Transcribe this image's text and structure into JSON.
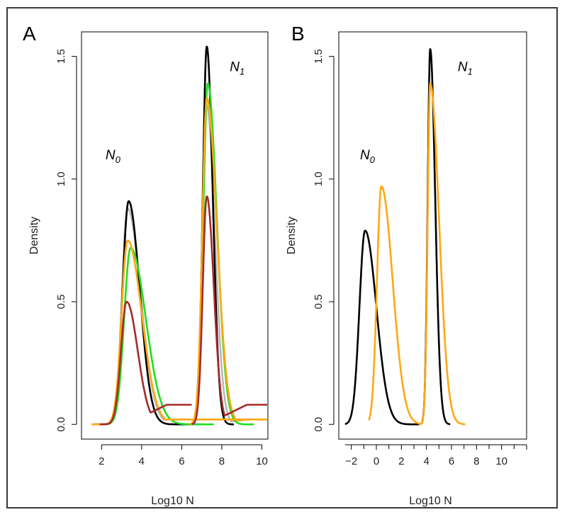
{
  "chart_data": [
    {
      "type": "line",
      "panel": "A",
      "xlabel": "Log10 N",
      "ylabel": "Density",
      "xlim": [
        1.0,
        10.3
      ],
      "ylim": [
        -0.06,
        1.6
      ],
      "xticks": [
        2,
        4,
        6,
        8,
        10
      ],
      "yticks": [
        0.0,
        0.5,
        1.0,
        1.5
      ],
      "ytick_labels": [
        "0.0",
        "0.5",
        "1.0",
        "1.5"
      ],
      "annotations": [
        {
          "main": "N",
          "sub": "0",
          "x": 2.2,
          "y": 1.08
        },
        {
          "main": "N",
          "sub": "1",
          "x": 8.4,
          "y": 1.44
        }
      ],
      "series": [
        {
          "name": "grey",
          "color": "#b8b8b8",
          "peaks": [
            {
              "center": 3.3,
              "height": 0.88,
              "left_width": 0.28,
              "right_width": 0.65,
              "from": 1.6,
              "to": 7.4
            },
            {
              "center": 7.25,
              "height": 1.3,
              "left_width": 0.22,
              "right_width": 0.4,
              "from": 6.4,
              "to": 9.5
            }
          ],
          "baseline": 0.02
        },
        {
          "name": "black",
          "color": "#000000",
          "peaks": [
            {
              "center": 3.35,
              "height": 0.91,
              "left_width": 0.3,
              "right_width": 0.55,
              "from": 1.6,
              "to": 7.0
            },
            {
              "center": 7.25,
              "height": 1.54,
              "left_width": 0.2,
              "right_width": 0.3,
              "from": 6.6,
              "to": 8.6
            }
          ],
          "baseline": 0.0
        },
        {
          "name": "green",
          "color": "#22dd22",
          "peaks": [
            {
              "center": 3.45,
              "height": 0.72,
              "left_width": 0.32,
              "right_width": 0.75,
              "from": 1.7,
              "to": 7.6
            },
            {
              "center": 7.3,
              "height": 1.39,
              "left_width": 0.22,
              "right_width": 0.45,
              "from": 6.5,
              "to": 9.6
            }
          ],
          "baseline": 0.0
        },
        {
          "name": "orange",
          "color": "#ffa812",
          "peaks": [
            {
              "center": 3.3,
              "height": 0.75,
              "left_width": 0.3,
              "right_width": 0.7,
              "from": 1.5,
              "to": 10.3
            },
            {
              "center": 7.25,
              "height": 1.33,
              "left_width": 0.22,
              "right_width": 0.5,
              "from": 6.4,
              "to": 10.3
            }
          ],
          "baseline": 0.02
        },
        {
          "name": "darkred",
          "color": "#a52a2a",
          "peaks": [
            {
              "center": 3.25,
              "height": 0.5,
              "left_width": 0.28,
              "right_width": 0.55,
              "from": 1.9,
              "to": 6.5
            },
            {
              "center": 7.25,
              "height": 0.93,
              "left_width": 0.2,
              "right_width": 0.35,
              "from": 6.5,
              "to": 10.3
            }
          ],
          "baseline": 0.08
        }
      ]
    },
    {
      "type": "line",
      "panel": "B",
      "xlabel": "Log10 N",
      "ylabel": "Density",
      "xlim": [
        -3.0,
        12.0
      ],
      "ylim": [
        -0.06,
        1.6
      ],
      "xticks": [
        -2,
        0,
        2,
        4,
        6,
        8,
        10
      ],
      "xtick_labels": [
        "−2",
        "0",
        "2",
        "4",
        "6",
        "8",
        "10"
      ],
      "yticks": [
        0.0,
        0.5,
        1.0,
        1.5
      ],
      "ytick_labels": [
        "0.0",
        "0.5",
        "1.0",
        "1.5"
      ],
      "annotations": [
        {
          "main": "N",
          "sub": "0",
          "x": -1.3,
          "y": 1.08
        },
        {
          "main": "N",
          "sub": "1",
          "x": 6.5,
          "y": 1.44
        }
      ],
      "series": [
        {
          "name": "black",
          "color": "#000000",
          "peaks": [
            {
              "center": -0.9,
              "height": 0.79,
              "left_width": 0.45,
              "right_width": 0.9,
              "from": -2.5,
              "to": 3.4
            },
            {
              "center": 4.3,
              "height": 1.53,
              "left_width": 0.2,
              "right_width": 0.4,
              "from": 3.6,
              "to": 5.9
            }
          ],
          "baseline": 0.0
        },
        {
          "name": "orange",
          "color": "#ffa812",
          "peaks": [
            {
              "center": 0.4,
              "height": 0.97,
              "left_width": 0.35,
              "right_width": 0.9,
              "from": -0.6,
              "to": 3.6
            },
            {
              "center": 4.3,
              "height": 1.39,
              "left_width": 0.2,
              "right_width": 0.7,
              "from": 3.4,
              "to": 7.1
            }
          ],
          "baseline": 0.0
        }
      ]
    }
  ]
}
